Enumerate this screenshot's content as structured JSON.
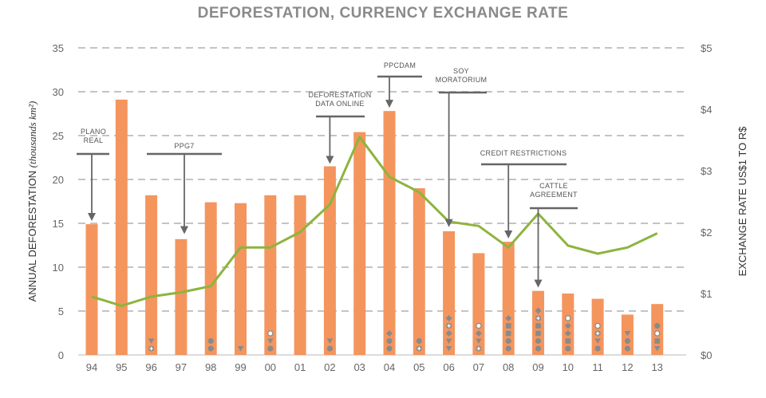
{
  "chart_data": {
    "type": "bar",
    "title": "DEFORESTATION, CURRENCY EXCHANGE RATE",
    "ylabel": "ANNUAL DEFORESTATION",
    "ylabel_italic": "(thousands km²)",
    "y2label": "EXCHANGE RATE US$1 TO R$",
    "categories": [
      "94",
      "95",
      "96",
      "97",
      "98",
      "99",
      "00",
      "01",
      "02",
      "03",
      "04",
      "05",
      "06",
      "07",
      "08",
      "09",
      "10",
      "11",
      "12",
      "13"
    ],
    "ylim": [
      0,
      35
    ],
    "y_ticks": [
      "0",
      "5",
      "10",
      "15",
      "20",
      "25",
      "30",
      "35"
    ],
    "y2lim": [
      0,
      5
    ],
    "y2_ticks": [
      "$0",
      "$1",
      "$2",
      "$3",
      "$4",
      "$5"
    ],
    "grid": true,
    "series": [
      {
        "values": [
          14.9,
          29.1,
          18.2,
          13.2,
          17.4,
          17.3,
          18.2,
          18.2,
          21.5,
          25.4,
          27.8,
          19.0,
          14.1,
          11.6,
          12.9,
          7.3,
          7.0,
          6.4,
          4.6,
          5.8
        ],
        "color": "#f4955e",
        "axis": "left"
      },
      {
        "values": [
          0.95,
          0.8,
          0.95,
          1.02,
          1.12,
          1.75,
          1.75,
          2.0,
          2.45,
          3.55,
          2.9,
          2.65,
          2.17,
          2.1,
          1.75,
          2.3,
          1.78,
          1.65,
          1.75,
          1.98
        ],
        "color": "#8db43e",
        "axis": "right"
      }
    ],
    "marker_color": "#8a8a8a",
    "markers": [
      [],
      [],
      [
        "triangle",
        "plus-circle"
      ],
      [],
      [
        "circle",
        "circle"
      ],
      [
        "triangle"
      ],
      [
        "open-circle",
        "triangle",
        "circle"
      ],
      [],
      [
        "triangle",
        "circle"
      ],
      [],
      [
        "diamond",
        "circle",
        "circle"
      ],
      [
        "circle",
        "plus-circle"
      ],
      [
        "diamond",
        "plus-circle",
        "diamond",
        "triangle",
        "triangle"
      ],
      [
        "open-circle",
        "diamond",
        "triangle",
        "plus-circle"
      ],
      [
        "diamond",
        "square",
        "square",
        "circle",
        "circle"
      ],
      [
        "diamond",
        "plus-circle",
        "square",
        "square",
        "circle",
        "circle"
      ],
      [
        "open-circle",
        "diamond",
        "diamond",
        "square",
        "circle"
      ],
      [
        "open-circle",
        "plus-circle",
        "triangle",
        "circle"
      ],
      [
        "triangle",
        "circle",
        "circle"
      ],
      [
        "circle",
        "open-circle",
        "square",
        "triangle"
      ]
    ],
    "annotations": [
      {
        "lines": [
          "PLANO",
          "REAL"
        ],
        "category_index": 0,
        "y": 15
      },
      {
        "lines": [
          "PPG7"
        ],
        "category_index": 3,
        "y": 13.5
      },
      {
        "lines": [
          "DEFORESTATION",
          "DATA ONLINE"
        ],
        "category_index": 8,
        "y": 21.5
      },
      {
        "lines": [
          "PPCDAM"
        ],
        "category_index": 10,
        "y": 27.9
      },
      {
        "lines": [
          "SOY",
          "MORATORIUM"
        ],
        "category_index": 12,
        "y": 14.3
      },
      {
        "lines": [
          "CREDIT RESTRICTIONS"
        ],
        "category_index": 14,
        "y": 13.0
      },
      {
        "lines": [
          "CATTLE",
          "AGREEMENT"
        ],
        "category_index": 15,
        "y": 7.4
      }
    ]
  }
}
